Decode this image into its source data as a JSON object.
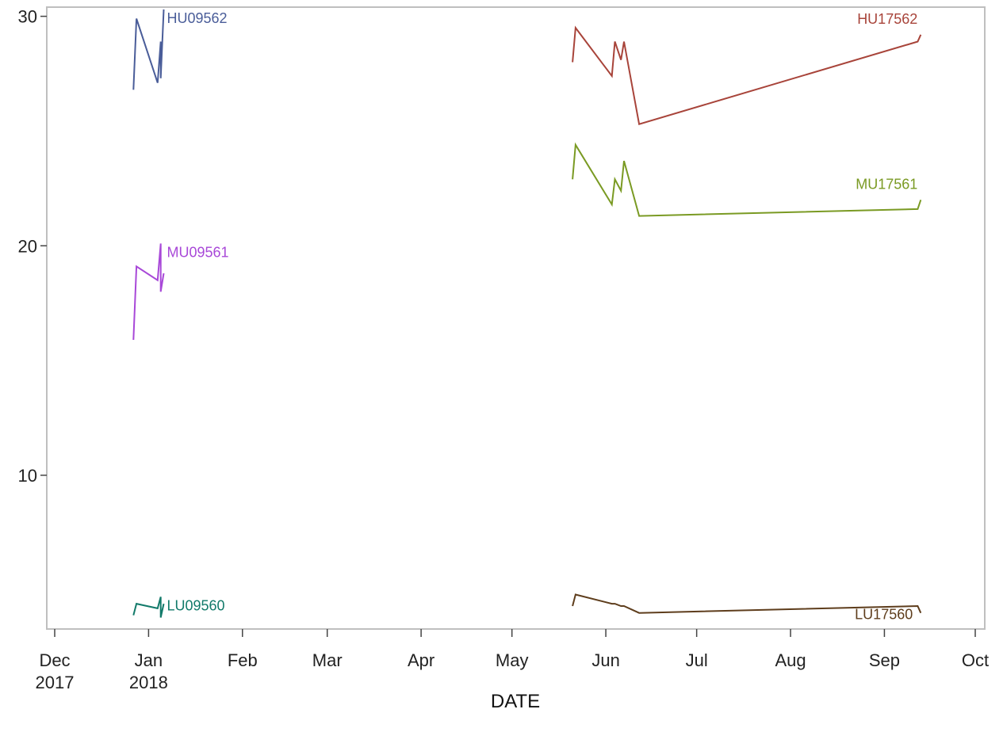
{
  "chart_data": {
    "type": "line",
    "title": "",
    "xlabel": "DATE",
    "ylabel": "",
    "xlim": [
      "2017-12-01",
      "2018-10-01"
    ],
    "ylim": [
      3.3,
      30.4
    ],
    "grid": false,
    "legend": "none",
    "x_ticks": [
      {
        "date": "2017-12-01",
        "label": "Dec",
        "sublabel": "2017"
      },
      {
        "date": "2018-01-01",
        "label": "Jan",
        "sublabel": "2018"
      },
      {
        "date": "2018-02-01",
        "label": "Feb",
        "sublabel": ""
      },
      {
        "date": "2018-03-01",
        "label": "Mar",
        "sublabel": ""
      },
      {
        "date": "2018-04-01",
        "label": "Apr",
        "sublabel": ""
      },
      {
        "date": "2018-05-01",
        "label": "May",
        "sublabel": ""
      },
      {
        "date": "2018-06-01",
        "label": "Jun",
        "sublabel": ""
      },
      {
        "date": "2018-07-01",
        "label": "Jul",
        "sublabel": ""
      },
      {
        "date": "2018-08-01",
        "label": "Aug",
        "sublabel": ""
      },
      {
        "date": "2018-09-01",
        "label": "Sep",
        "sublabel": ""
      },
      {
        "date": "2018-10-01",
        "label": "Oct",
        "sublabel": ""
      }
    ],
    "y_ticks": [
      10,
      20,
      30
    ],
    "series": [
      {
        "name": "HU09562",
        "color": "#4a5d99",
        "label_anchor": "right-of-end",
        "x": [
          "2017-12-27",
          "2017-12-28",
          "2018-01-04",
          "2018-01-05",
          "2018-01-05",
          "2018-01-06"
        ],
        "y": [
          26.8,
          29.9,
          27.1,
          28.9,
          27.3,
          30.3
        ]
      },
      {
        "name": "MU09561",
        "color": "#a848d8",
        "label_anchor": "right-of-end",
        "x": [
          "2017-12-27",
          "2017-12-28",
          "2018-01-04",
          "2018-01-05",
          "2018-01-05",
          "2018-01-06"
        ],
        "y": [
          15.9,
          19.1,
          18.5,
          20.1,
          18.0,
          18.8
        ]
      },
      {
        "name": "LU09560",
        "color": "#127a6a",
        "label_anchor": "right-of-end",
        "x": [
          "2017-12-27",
          "2017-12-28",
          "2018-01-04",
          "2018-01-05",
          "2018-01-05",
          "2018-01-06"
        ],
        "y": [
          3.9,
          4.4,
          4.2,
          4.7,
          3.8,
          4.4
        ]
      },
      {
        "name": "HU17562",
        "color": "#a8443a",
        "label_anchor": "above-end",
        "x": [
          "2018-05-21",
          "2018-05-22",
          "2018-06-03",
          "2018-06-04",
          "2018-06-06",
          "2018-06-07",
          "2018-06-12",
          "2018-09-12",
          "2018-09-13"
        ],
        "y": [
          28.0,
          29.5,
          27.4,
          28.9,
          28.1,
          28.9,
          25.3,
          28.9,
          29.2
        ]
      },
      {
        "name": "MU17561",
        "color": "#7a9a23",
        "label_anchor": "above-end",
        "x": [
          "2018-05-21",
          "2018-05-22",
          "2018-06-03",
          "2018-06-04",
          "2018-06-06",
          "2018-06-07",
          "2018-06-12",
          "2018-09-12",
          "2018-09-13"
        ],
        "y": [
          22.9,
          24.4,
          21.8,
          22.9,
          22.4,
          23.7,
          21.3,
          21.6,
          22.0
        ]
      },
      {
        "name": "LU17560",
        "color": "#5e3d1c",
        "label_anchor": "below-end",
        "x": [
          "2018-05-21",
          "2018-05-22",
          "2018-06-03",
          "2018-06-04",
          "2018-06-06",
          "2018-06-07",
          "2018-06-12",
          "2018-09-12",
          "2018-09-13"
        ],
        "y": [
          4.3,
          4.8,
          4.4,
          4.4,
          4.3,
          4.3,
          4.0,
          4.3,
          4.0
        ]
      }
    ]
  }
}
